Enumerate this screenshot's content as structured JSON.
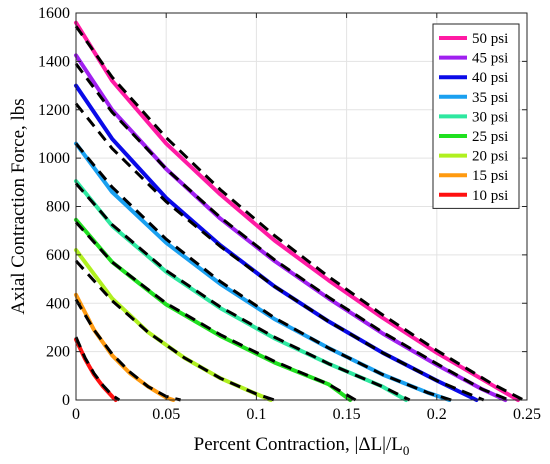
{
  "chart_data": {
    "type": "line",
    "title": "",
    "xlabel_main": "Percent Contraction, |ΔL|/L",
    "xlabel_sub": "0",
    "ylabel": "Axial Contraction Force, lbs",
    "xlim": [
      0,
      0.25
    ],
    "ylim": [
      0,
      1600
    ],
    "xticks": [
      "0",
      "0.05",
      "0.1",
      "0.15",
      "0.2",
      "0.25"
    ],
    "yticks": [
      "0",
      "200",
      "400",
      "600",
      "800",
      "1000",
      "1200",
      "1400",
      "1600"
    ],
    "grid": true,
    "legend_position": "top-right",
    "series": [
      {
        "name": "50 psi",
        "color": "#ff1aa3",
        "x": [
          0,
          0.02,
          0.05,
          0.08,
          0.11,
          0.14,
          0.17,
          0.2,
          0.23,
          0.245
        ],
        "y": [
          1560,
          1320,
          1060,
          850,
          660,
          495,
          340,
          195,
          65,
          0
        ]
      },
      {
        "name": "45 psi",
        "color": "#a020f0",
        "x": [
          0,
          0.02,
          0.05,
          0.08,
          0.11,
          0.14,
          0.17,
          0.2,
          0.225,
          0.238
        ],
        "y": [
          1425,
          1200,
          955,
          750,
          575,
          420,
          275,
          145,
          45,
          0
        ]
      },
      {
        "name": "40 psi",
        "color": "#0a0ae8",
        "x": [
          0,
          0.02,
          0.05,
          0.08,
          0.11,
          0.14,
          0.17,
          0.2,
          0.222
        ],
        "y": [
          1300,
          1080,
          835,
          640,
          470,
          325,
          195,
          80,
          0
        ]
      },
      {
        "name": "35 psi",
        "color": "#1aa0f0",
        "x": [
          0,
          0.02,
          0.05,
          0.08,
          0.11,
          0.14,
          0.17,
          0.195,
          0.207
        ],
        "y": [
          1060,
          860,
          650,
          480,
          335,
          215,
          105,
          30,
          0
        ]
      },
      {
        "name": "30 psi",
        "color": "#2ee8a0",
        "x": [
          0,
          0.02,
          0.05,
          0.08,
          0.11,
          0.14,
          0.17,
          0.183
        ],
        "y": [
          905,
          720,
          530,
          380,
          255,
          150,
          55,
          0
        ]
      },
      {
        "name": "25 psi",
        "color": "#20e020",
        "x": [
          0,
          0.02,
          0.05,
          0.08,
          0.11,
          0.14,
          0.152
        ],
        "y": [
          745,
          570,
          395,
          265,
          155,
          65,
          0
        ]
      },
      {
        "name": "20 psi",
        "color": "#b0f020",
        "x": [
          0,
          0.02,
          0.04,
          0.06,
          0.08,
          0.1,
          0.108
        ],
        "y": [
          620,
          420,
          280,
          175,
          90,
          25,
          0
        ]
      },
      {
        "name": "15 psi",
        "color": "#ff9a10",
        "x": [
          0,
          0.01,
          0.02,
          0.03,
          0.04,
          0.05,
          0.054
        ],
        "y": [
          435,
          290,
          185,
          110,
          55,
          10,
          0
        ]
      },
      {
        "name": "10 psi",
        "color": "#ff1010",
        "x": [
          0,
          0.005,
          0.01,
          0.015,
          0.02,
          0.022
        ],
        "y": [
          250,
          170,
          105,
          55,
          15,
          0
        ]
      }
    ],
    "model_fits": [
      {
        "x": [
          0,
          0.02,
          0.05,
          0.08,
          0.11,
          0.14,
          0.17,
          0.2,
          0.23,
          0.248
        ],
        "y": [
          1545,
          1335,
          1085,
          870,
          680,
          510,
          352,
          205,
          70,
          0
        ]
      },
      {
        "x": [
          0,
          0.02,
          0.05,
          0.08,
          0.11,
          0.14,
          0.17,
          0.2,
          0.225,
          0.24
        ],
        "y": [
          1390,
          1190,
          955,
          755,
          580,
          425,
          280,
          150,
          45,
          0
        ]
      },
      {
        "x": [
          0,
          0.02,
          0.05,
          0.08,
          0.11,
          0.14,
          0.17,
          0.2,
          0.226
        ],
        "y": [
          1225,
          1040,
          820,
          635,
          470,
          325,
          195,
          80,
          0
        ]
      },
      {
        "x": [
          0,
          0.02,
          0.05,
          0.08,
          0.11,
          0.14,
          0.17,
          0.195,
          0.208
        ],
        "y": [
          1060,
          880,
          665,
          490,
          340,
          215,
          105,
          30,
          0
        ]
      },
      {
        "x": [
          0,
          0.02,
          0.05,
          0.08,
          0.11,
          0.14,
          0.17,
          0.185
        ],
        "y": [
          895,
          725,
          535,
          385,
          260,
          150,
          55,
          0
        ]
      },
      {
        "x": [
          0,
          0.02,
          0.05,
          0.08,
          0.11,
          0.14,
          0.155
        ],
        "y": [
          735,
          570,
          400,
          270,
          160,
          65,
          0
        ]
      },
      {
        "x": [
          0,
          0.02,
          0.04,
          0.06,
          0.08,
          0.1,
          0.11
        ],
        "y": [
          575,
          410,
          280,
          175,
          90,
          25,
          0
        ]
      },
      {
        "x": [
          0,
          0.01,
          0.02,
          0.03,
          0.04,
          0.05,
          0.058
        ],
        "y": [
          415,
          290,
          190,
          115,
          55,
          15,
          0
        ]
      },
      {
        "x": [
          0,
          0.005,
          0.01,
          0.015,
          0.02,
          0.024
        ],
        "y": [
          260,
          175,
          110,
          60,
          20,
          0
        ]
      }
    ]
  }
}
